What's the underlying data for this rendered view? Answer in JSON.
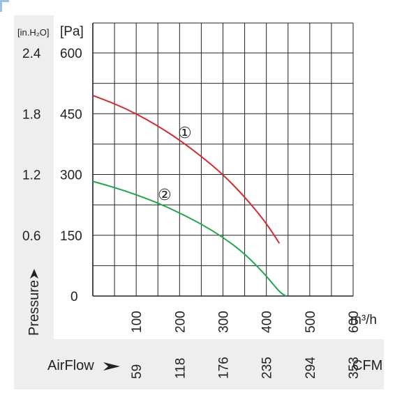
{
  "chart_data": {
    "type": "line",
    "title": "",
    "y_units": {
      "primary": "[Pa]",
      "secondary": "[in.H₂O]"
    },
    "y_ticks": {
      "primary": [
        0,
        150,
        300,
        450,
        600
      ],
      "secondary": [
        "0.6",
        "1.2",
        "1.8",
        "2.4"
      ]
    },
    "ylim": [
      0,
      600
    ],
    "ylabel": "Pressure",
    "x_units": {
      "primary": "m³/h",
      "secondary": "CFM"
    },
    "x_ticks": {
      "primary": [
        100,
        200,
        300,
        400,
        500,
        600
      ],
      "secondary": [
        59,
        118,
        176,
        235,
        294,
        353
      ]
    },
    "xlim": [
      0,
      600
    ],
    "xlabel": "AirFlow",
    "grid": true,
    "series": [
      {
        "name": "①",
        "color": "#d42a32",
        "x": [
          0,
          50,
          100,
          150,
          200,
          250,
          300,
          350,
          400,
          430
        ],
        "y": [
          495,
          475,
          450,
          420,
          385,
          345,
          300,
          245,
          180,
          130
        ]
      },
      {
        "name": "②",
        "color": "#1fa84a",
        "x": [
          0,
          50,
          100,
          150,
          200,
          250,
          300,
          350,
          400,
          430,
          445
        ],
        "y": [
          283,
          268,
          250,
          230,
          205,
          178,
          145,
          105,
          50,
          10,
          0
        ]
      }
    ]
  }
}
